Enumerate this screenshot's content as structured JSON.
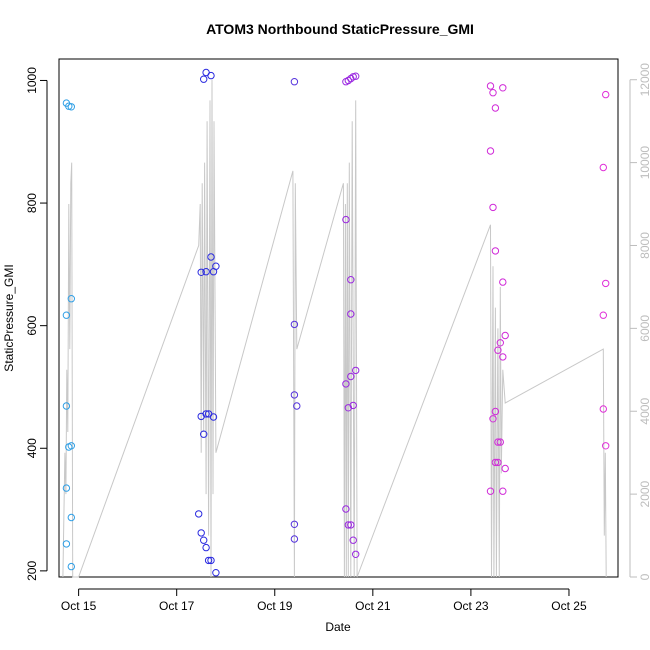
{
  "chart_data": {
    "type": "scatter",
    "title": "ATOM3 Northbound StaticPressure_GMI",
    "xlabel": "Date",
    "ylabel": "StaticPressure_GMI",
    "x_ticks": [
      "Oct 15",
      "Oct 17",
      "Oct 19",
      "Oct 21",
      "Oct 23",
      "Oct 25"
    ],
    "x_tick_values": [
      15,
      17,
      19,
      21,
      23,
      25
    ],
    "xlim": [
      14.6,
      26.0
    ],
    "ylim": [
      190,
      1035
    ],
    "y_ticks": [
      200,
      400,
      600,
      800,
      1000
    ],
    "y2lim": [
      0,
      12500
    ],
    "y2_ticks": [
      0,
      2000,
      4000,
      6000,
      8000,
      10000,
      12000
    ],
    "grid": false,
    "colors": {
      "line": "#c8c8c8",
      "points_flight1": "#2f9fe6",
      "points_flight2": "#2a2ae0",
      "points_flight3": "#5533dd",
      "points_flight4": "#9a28e0",
      "points_flight5": "#d02ad8",
      "points_flight6": "#e030d8"
    },
    "series": [
      {
        "color_key": "points_flight1",
        "points": [
          [
            14.75,
            963
          ],
          [
            14.8,
            958
          ],
          [
            14.85,
            957
          ],
          [
            14.75,
            617
          ],
          [
            14.85,
            644
          ],
          [
            14.75,
            469
          ],
          [
            14.8,
            402
          ],
          [
            14.85,
            404
          ],
          [
            14.75,
            335
          ],
          [
            14.85,
            287
          ],
          [
            14.75,
            244
          ],
          [
            14.85,
            207
          ]
        ]
      },
      {
        "color_key": "points_flight2",
        "points": [
          [
            17.55,
            1002
          ],
          [
            17.6,
            1013
          ],
          [
            17.7,
            1008
          ],
          [
            17.5,
            687
          ],
          [
            17.6,
            688
          ],
          [
            17.7,
            712
          ],
          [
            17.75,
            688
          ],
          [
            17.8,
            697
          ],
          [
            17.5,
            452
          ],
          [
            17.6,
            456
          ],
          [
            17.65,
            456
          ],
          [
            17.75,
            451
          ],
          [
            17.55,
            423
          ],
          [
            17.45,
            293
          ],
          [
            17.5,
            262
          ],
          [
            17.55,
            250
          ],
          [
            17.6,
            238
          ],
          [
            17.65,
            217
          ],
          [
            17.7,
            217
          ],
          [
            17.8,
            197
          ]
        ]
      },
      {
        "color_key": "points_flight3",
        "points": [
          [
            19.4,
            998
          ],
          [
            19.4,
            602
          ],
          [
            19.4,
            487
          ],
          [
            19.45,
            469
          ],
          [
            19.4,
            276
          ],
          [
            19.4,
            252
          ]
        ]
      },
      {
        "color_key": "points_flight4",
        "points": [
          [
            20.45,
            998
          ],
          [
            20.5,
            1000
          ],
          [
            20.55,
            1003
          ],
          [
            20.6,
            1006
          ],
          [
            20.65,
            1007
          ],
          [
            20.45,
            773
          ],
          [
            20.55,
            675
          ],
          [
            20.55,
            619
          ],
          [
            20.65,
            527
          ],
          [
            20.55,
            517
          ],
          [
            20.45,
            505
          ],
          [
            20.5,
            466
          ],
          [
            20.6,
            470
          ],
          [
            20.45,
            301
          ],
          [
            20.5,
            275
          ],
          [
            20.55,
            275
          ],
          [
            20.6,
            250
          ],
          [
            20.65,
            227
          ]
        ]
      },
      {
        "color_key": "points_flight5",
        "points": [
          [
            23.4,
            991
          ],
          [
            23.45,
            980
          ],
          [
            23.5,
            955
          ],
          [
            23.65,
            988
          ],
          [
            23.4,
            885
          ],
          [
            23.45,
            793
          ],
          [
            23.5,
            722
          ],
          [
            23.65,
            671
          ],
          [
            23.7,
            584
          ],
          [
            23.6,
            572
          ],
          [
            23.55,
            560
          ],
          [
            23.65,
            549
          ],
          [
            23.5,
            460
          ],
          [
            23.45,
            448
          ],
          [
            23.55,
            410
          ],
          [
            23.6,
            410
          ],
          [
            23.5,
            377
          ],
          [
            23.55,
            377
          ],
          [
            23.7,
            367
          ],
          [
            23.4,
            330
          ],
          [
            23.65,
            330
          ]
        ]
      },
      {
        "color_key": "points_flight6",
        "points": [
          [
            25.75,
            977
          ],
          [
            25.7,
            858
          ],
          [
            25.75,
            669
          ],
          [
            25.7,
            617
          ],
          [
            25.7,
            464
          ],
          [
            25.75,
            404
          ]
        ]
      }
    ],
    "altitude_line": {
      "axis": "right",
      "points": [
        [
          14.68,
          0
        ],
        [
          14.72,
          3000
        ],
        [
          14.74,
          2000
        ],
        [
          14.76,
          5000
        ],
        [
          14.78,
          3500
        ],
        [
          14.8,
          9000
        ],
        [
          14.82,
          5500
        ],
        [
          14.84,
          9500
        ],
        [
          14.86,
          10000
        ],
        [
          14.88,
          0
        ],
        [
          15.0,
          0
        ],
        [
          17.45,
          8000
        ],
        [
          17.48,
          9000
        ],
        [
          17.5,
          3000
        ],
        [
          17.52,
          9500
        ],
        [
          17.55,
          3500
        ],
        [
          17.57,
          10000
        ],
        [
          17.6,
          2000
        ],
        [
          17.62,
          11000
        ],
        [
          17.65,
          1000
        ],
        [
          17.68,
          11500
        ],
        [
          17.7,
          0
        ],
        [
          17.72,
          12000
        ],
        [
          17.74,
          2000
        ],
        [
          17.76,
          11000
        ],
        [
          17.8,
          3000
        ],
        [
          19.37,
          9800
        ],
        [
          19.4,
          0
        ],
        [
          19.42,
          9500
        ],
        [
          19.45,
          5500
        ],
        [
          20.4,
          9500
        ],
        [
          20.42,
          0
        ],
        [
          20.44,
          9000
        ],
        [
          20.46,
          0
        ],
        [
          20.48,
          9500
        ],
        [
          20.5,
          0
        ],
        [
          20.52,
          10000
        ],
        [
          20.55,
          0
        ],
        [
          20.58,
          11000
        ],
        [
          20.62,
          0
        ],
        [
          20.65,
          11500
        ],
        [
          20.68,
          0
        ],
        [
          23.4,
          8500
        ],
        [
          23.42,
          0
        ],
        [
          23.45,
          7500
        ],
        [
          23.47,
          0
        ],
        [
          23.5,
          6500
        ],
        [
          23.52,
          0
        ],
        [
          23.55,
          6000
        ],
        [
          23.58,
          0
        ],
        [
          23.6,
          7000
        ],
        [
          23.62,
          2500
        ],
        [
          23.65,
          5000
        ],
        [
          23.7,
          4200
        ],
        [
          25.7,
          5500
        ],
        [
          25.72,
          1000
        ],
        [
          25.74,
          3000
        ],
        [
          25.76,
          0
        ]
      ]
    }
  }
}
